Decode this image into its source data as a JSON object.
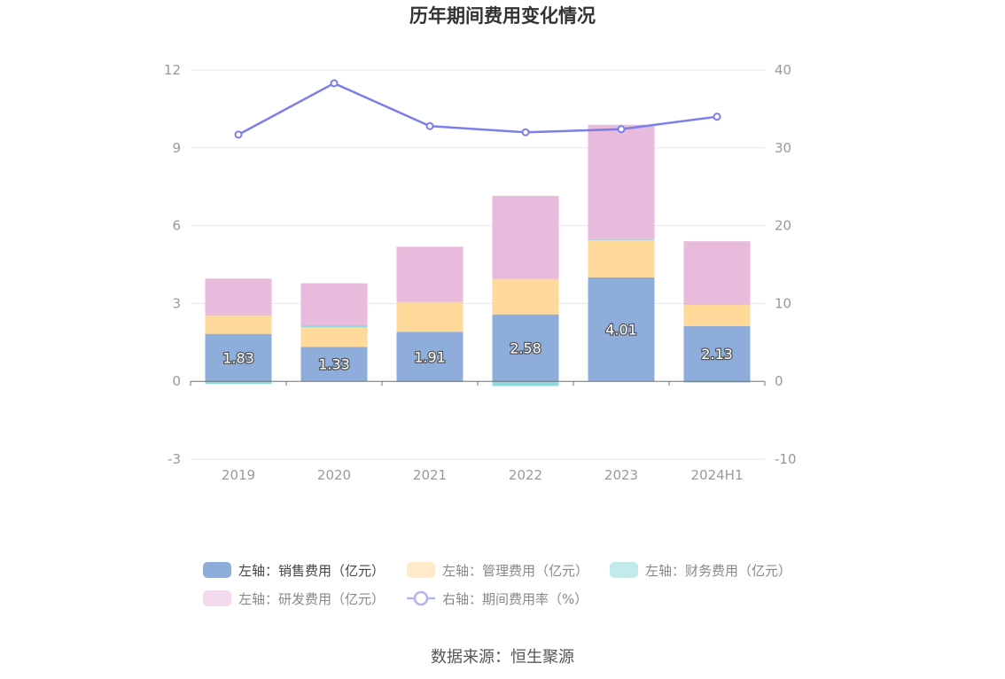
{
  "title": "历年期间费用变化情况",
  "source": "数据来源：恒生聚源",
  "colors": {
    "sales": "#8eaddb",
    "admin": "#fed99a",
    "finance": "#8fd8dc",
    "rnd": "#e8badb",
    "rate": "#7b7fe8",
    "grid": "#e3e6f3",
    "axis_text": "#999999",
    "title": "#333333",
    "legend_text": "#666666"
  },
  "chart_data": {
    "type": "bar",
    "stacked": true,
    "title": "历年期间费用变化情况",
    "categories": [
      "2019",
      "2020",
      "2021",
      "2022",
      "2023",
      "2024H1"
    ],
    "y_left": {
      "min": -3,
      "max": 12,
      "ticks": [
        "-3",
        "0",
        "3",
        "6",
        "9",
        "12"
      ]
    },
    "y_right": {
      "min": -10,
      "max": 40,
      "ticks": [
        "-10",
        "0",
        "10",
        "20",
        "30",
        "40"
      ]
    },
    "grid": true,
    "legend_position": "bottom",
    "series": [
      {
        "key": "sales",
        "name": "左轴：销售费用（亿元）",
        "axis": "left",
        "type": "bar",
        "values": [
          1.83,
          1.33,
          1.91,
          2.58,
          4.01,
          2.13
        ],
        "labels": [
          "1.83",
          "1.33",
          "1.91",
          "2.58",
          "4.01",
          "2.13"
        ]
      },
      {
        "key": "admin",
        "name": "左轴：管理费用（亿元）",
        "axis": "left",
        "type": "bar",
        "values": [
          0.7,
          0.75,
          1.15,
          1.37,
          1.43,
          0.82
        ]
      },
      {
        "key": "finance",
        "name": "左轴：财务费用（亿元）",
        "axis": "left",
        "type": "bar",
        "values": [
          -0.1,
          0.08,
          -0.02,
          -0.18,
          0.02,
          -0.05
        ]
      },
      {
        "key": "rnd",
        "name": "左轴：研发费用（亿元）",
        "axis": "left",
        "type": "bar",
        "values": [
          1.43,
          1.62,
          2.13,
          3.2,
          4.43,
          2.45
        ]
      },
      {
        "key": "rate",
        "name": "右轴：期间费用率（%）",
        "axis": "right",
        "type": "line",
        "values": [
          31.7,
          38.3,
          32.8,
          32.0,
          32.4,
          34.0
        ]
      }
    ]
  }
}
